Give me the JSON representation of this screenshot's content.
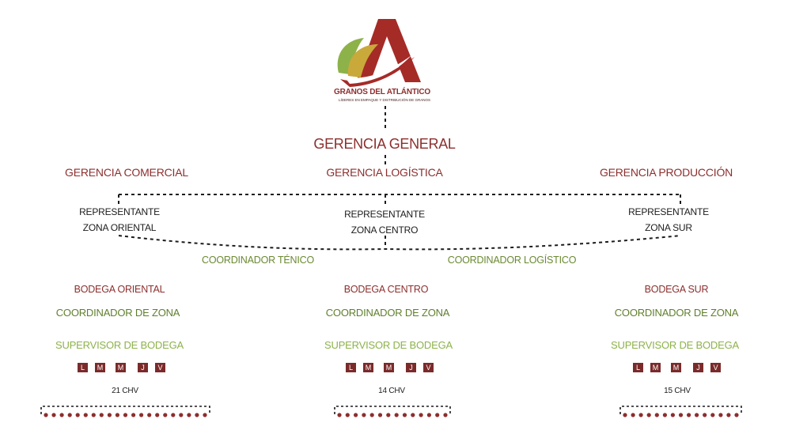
{
  "logo": {
    "brand": "GRANOS DEL ATLÁNTICO",
    "tagline": "LÍDERES EN EMPAQUE Y DISTRIBUCIÓN DE GRANOS"
  },
  "general_manager": "GERENCIA GENERAL",
  "managers": {
    "commercial": "GERENCIA COMERCIAL",
    "logistics": "GERENCIA LOGÍSTICA",
    "production": "GERENCIA PRODUCCIÓN"
  },
  "representatives": {
    "east": [
      "REPRESENTANTE",
      "ZONA ORIENTAL"
    ],
    "center": [
      "REPRESENTANTE",
      "ZONA CENTRO"
    ],
    "south": [
      "REPRESENTANTE",
      "ZONA SUR"
    ]
  },
  "coordinators": {
    "technical": "COORDINADOR TÉNICO",
    "logistics": "COORDINADOR LOGÍSTICO"
  },
  "warehouses": [
    {
      "name": "BODEGA ORIENTAL",
      "coordinator": "COORDINADOR DE ZONA",
      "supervisor": "SUPERVISOR DE BODEGA",
      "days": [
        "L",
        "M",
        "M",
        "J",
        "V"
      ],
      "vehicles": "21 CHV",
      "vehicle_count": 21
    },
    {
      "name": "BODEGA CENTRO",
      "coordinator": "COORDINADOR DE ZONA",
      "supervisor": "SUPERVISOR DE BODEGA",
      "days": [
        "L",
        "M",
        "M",
        "J",
        "V"
      ],
      "vehicles": "14 CHV",
      "vehicle_count": 14
    },
    {
      "name": "BODEGA SUR",
      "coordinator": "COORDINADOR DE ZONA",
      "supervisor": "SUPERVISOR DE BODEGA",
      "days": [
        "L",
        "M",
        "M",
        "J",
        "V"
      ],
      "vehicles": "15 CHV",
      "vehicle_count": 15
    }
  ],
  "colors": {
    "maroon": "#8c2f2e",
    "green_dark": "#5f7f2c",
    "green_light": "#8db24a",
    "day_box": "#7b2a2a"
  }
}
